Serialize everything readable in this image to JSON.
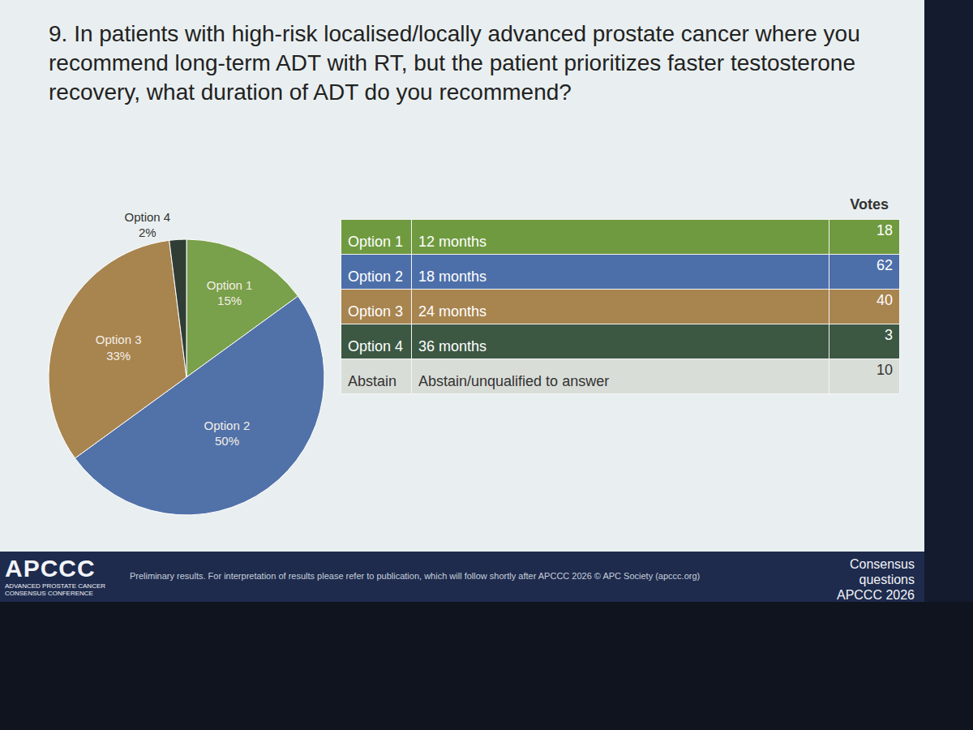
{
  "chart_data": {
    "type": "pie",
    "title": "9. In patients with high-risk localised/locally advanced prostate cancer where you recommend long-term ADT with RT, but the patient prioritizes faster testosterone recovery, what duration of ADT do you recommend?",
    "categories": [
      "Option 1",
      "Option 2",
      "Option 3",
      "Option 4"
    ],
    "values": [
      15,
      50,
      33,
      2
    ],
    "value_labels": [
      "15%",
      "50%",
      "33%",
      "2%"
    ],
    "colors": [
      "#79a04a",
      "#5171a9",
      "#a8844f",
      "#2f3d35"
    ],
    "data_labels": true
  },
  "table": {
    "header": "Votes",
    "rows": [
      [
        "Option 1",
        "12 months",
        18
      ],
      [
        "Option 2",
        "18 months",
        62
      ],
      [
        "Option 3",
        "24 months",
        40
      ],
      [
        "Option 4",
        "36 months",
        3
      ],
      [
        "Abstain",
        "Abstain/unqualified to answer",
        10
      ]
    ],
    "colors": [
      "#6f9a3f",
      "#4d6fa9",
      "#a8844f",
      "#3c5843",
      "#d9ddd8"
    ]
  },
  "footer": {
    "logo": "APCCC",
    "logo_subtitle": "ADVANCED PROSTATE CANCER CONSENSUS CONFERENCE",
    "note": "Preliminary results. For interpretation of results please refer to publication, which will follow shortly after APCCC 2026 © APC Society (apccc.org)",
    "right": [
      "Consensus",
      "questions",
      "APCCC 2026"
    ]
  }
}
